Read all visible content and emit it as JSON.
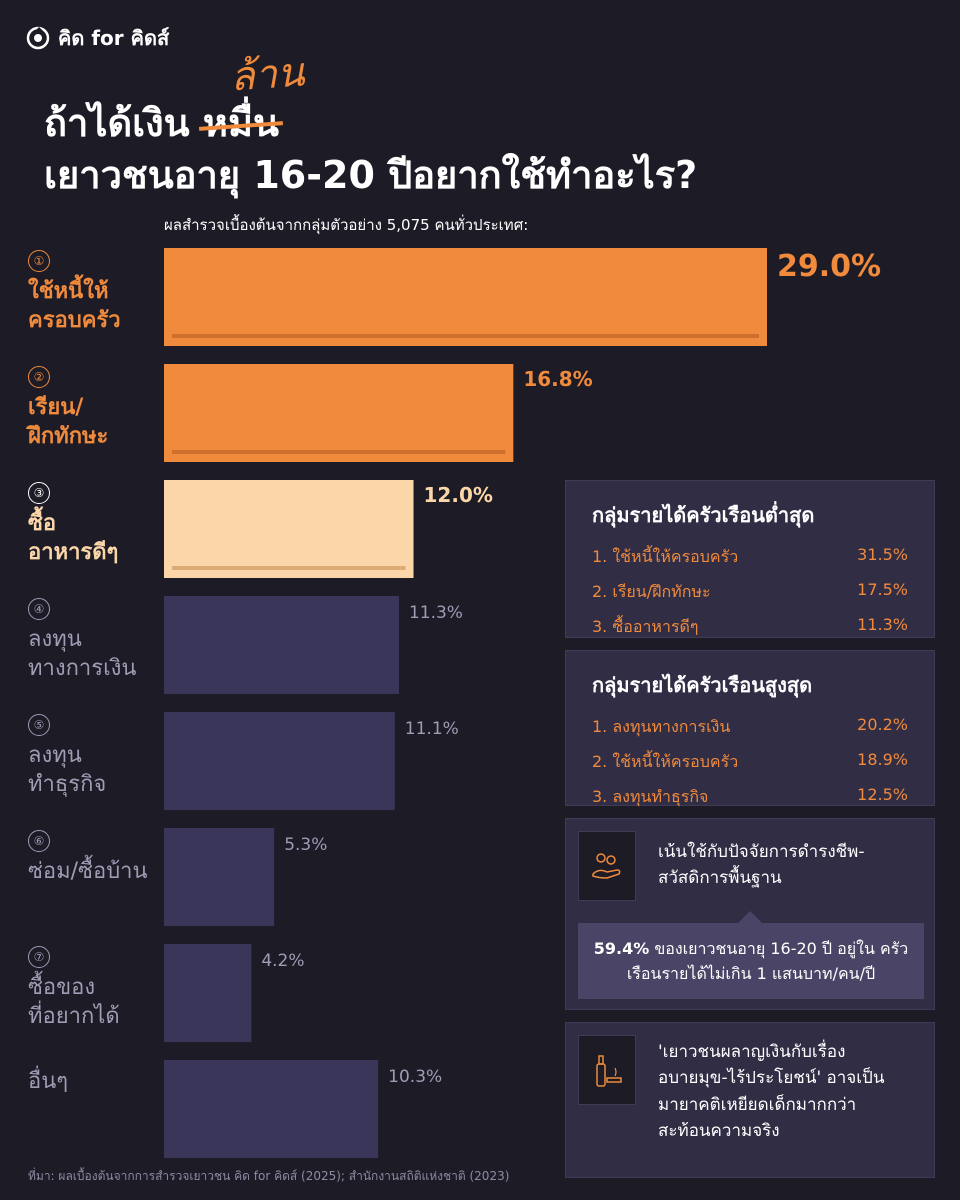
{
  "brand": {
    "name": "คิด for คิดส์"
  },
  "title": {
    "line1_prefix": "ถ้าได้เงิน",
    "line1_struck": "หมื่น",
    "line1_replacement": "ล้าน",
    "line2": "เยาวชนอายุ 16-20 ปีอยากใช้ทำอะไร?"
  },
  "subtitle": "ผลสำรวจเบื้องต้นจากกลุ่มตัวอย่าง 5,075 คนทั่วประเทศ:",
  "chart_data": {
    "type": "bar",
    "orientation": "horizontal",
    "categories": [
      {
        "num": "①",
        "label": "ใช้หนี้ให้\nครอบครัว",
        "value": 29.0,
        "value_label": "29.0%",
        "style": "orange"
      },
      {
        "num": "②",
        "label": "เรียน/\nฝึกทักษะ",
        "value": 16.8,
        "value_label": "16.8%",
        "style": "orange"
      },
      {
        "num": "③",
        "label": "ซื้อ\nอาหารดีๆ",
        "value": 12.0,
        "value_label": "12.0%",
        "style": "light"
      },
      {
        "num": "④",
        "label": "ลงทุน\nทางการเงิน",
        "value": 11.3,
        "value_label": "11.3%",
        "style": "dim"
      },
      {
        "num": "⑤",
        "label": "ลงทุน\nทำธุรกิจ",
        "value": 11.1,
        "value_label": "11.1%",
        "style": "dim"
      },
      {
        "num": "⑥",
        "label": "ซ่อม/ซื้อบ้าน",
        "value": 5.3,
        "value_label": "5.3%",
        "style": "dim"
      },
      {
        "num": "⑦",
        "label": "ซื้อของ\nที่อยากได้",
        "value": 4.2,
        "value_label": "4.2%",
        "style": "dim"
      },
      {
        "num": "",
        "label": "อื่นๆ",
        "value": 10.3,
        "value_label": "10.3%",
        "style": "dim"
      }
    ],
    "unit": "%",
    "colors": {
      "orange": "#f08a3c",
      "light": "#fbd6a8",
      "dim": "#3a365a",
      "orange_text": "#f08a3c",
      "light_text": "#fbd6a8",
      "dim_text": "#9f9cb4"
    }
  },
  "panels": [
    {
      "title": "กลุ่มรายได้ครัวเรือนต่ำสุด",
      "rows": [
        {
          "label": "1. ใช้หนี้ให้ครอบครัว",
          "value": "31.5%"
        },
        {
          "label": "2. เรียน/ฝึกทักษะ",
          "value": "17.5%"
        },
        {
          "label": "3. ซื้ออาหารดีๆ",
          "value": "11.3%"
        }
      ]
    },
    {
      "title": "กลุ่มรายได้ครัวเรือนสูงสุด",
      "rows": [
        {
          "label": "1. ลงทุนทางการเงิน",
          "value": "20.2%"
        },
        {
          "label": "2. ใช้หนี้ให้ครอบครัว",
          "value": "18.9%"
        },
        {
          "label": "3. ลงทุนทำธุรกิจ",
          "value": "12.5%"
        }
      ]
    }
  ],
  "note1": {
    "icon": "hand-with-food-icon",
    "text": "เน้นใช้กับปัจจัยการดำรงชีพ-\nสวัสดิการพื้นฐาน",
    "inner_bold": "59.4%",
    "inner_rest": " ของเยาวชนอายุ 16-20 ปี อยู่ใน ครัวเรือนรายได้ไม่เกิน 1 แสนบาท/คน/ปี"
  },
  "note2": {
    "icon": "bottle-cigarette-icon",
    "text": "'เยาวชนผลาญเงินกับเรื่อง\nอบายมุข-ไร้ประโยชน์' อาจเป็น\nมายาคติเหยียดเด็กมากกว่า\nสะท้อนความจริง"
  },
  "footer": "ที่มา: ผลเบื้องต้นจากการสำรวจเยาวชน คิด for คิดส์ (2025); สำนักงานสถิติแห่งชาติ (2023)"
}
